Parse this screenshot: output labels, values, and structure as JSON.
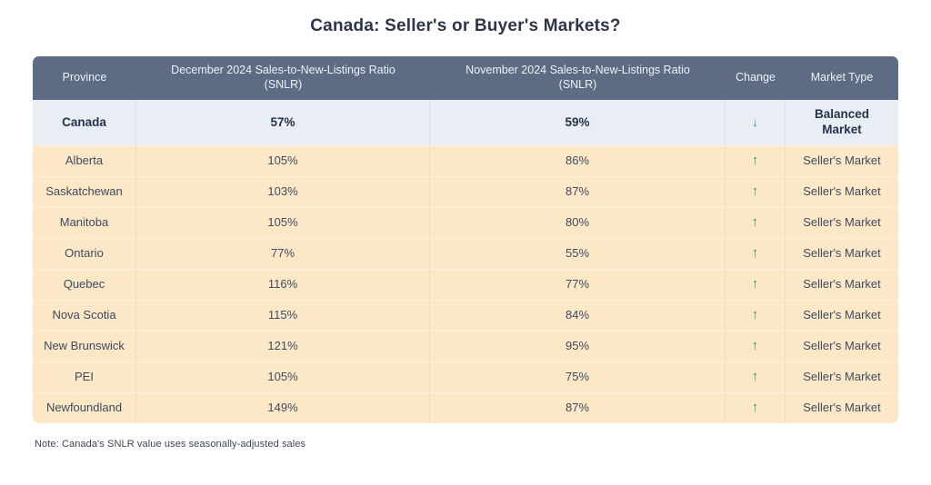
{
  "title": "Canada: Seller's or Buyer's Markets?",
  "note": "Note: Canada's SNLR value uses seasonally-adjusted sales",
  "columns": {
    "province": "Province",
    "dec": "December 2024 Sales-to-New-Listings Ratio (SNLR)",
    "nov": "November 2024 Sales-to-New-Listings Ratio (SNLR)",
    "change": "Change",
    "market": "Market Type"
  },
  "arrow_glyphs": {
    "up": "↑",
    "down": "↓"
  },
  "colors": {
    "header_bg": "#5d6b83",
    "header_text": "#eef1f6",
    "canada_row_bg": "#e9eef4",
    "province_row_bg": "#fce8c7",
    "arrow_green": "#2f9e44",
    "title_text": "#2b3648",
    "body_text": "#3d4b60"
  },
  "chart_data": {
    "type": "table",
    "title": "Canada: Seller's or Buyer's Markets?",
    "columns": [
      "Province",
      "December 2024 Sales-to-New-Listings Ratio (SNLR)",
      "November 2024 Sales-to-New-Listings Ratio (SNLR)",
      "Change",
      "Market Type"
    ],
    "rows": [
      {
        "province": "Canada",
        "dec_2024_snlr": "57%",
        "nov_2024_snlr": "59%",
        "change": "down",
        "market_type": "Balanced Market",
        "emphasis": true
      },
      {
        "province": "Alberta",
        "dec_2024_snlr": "105%",
        "nov_2024_snlr": "86%",
        "change": "up",
        "market_type": "Seller's Market"
      },
      {
        "province": "Saskatchewan",
        "dec_2024_snlr": "103%",
        "nov_2024_snlr": "87%",
        "change": "up",
        "market_type": "Seller's Market"
      },
      {
        "province": "Manitoba",
        "dec_2024_snlr": "105%",
        "nov_2024_snlr": "80%",
        "change": "up",
        "market_type": "Seller's Market"
      },
      {
        "province": "Ontario",
        "dec_2024_snlr": "77%",
        "nov_2024_snlr": "55%",
        "change": "up",
        "market_type": "Seller's Market"
      },
      {
        "province": "Quebec",
        "dec_2024_snlr": "116%",
        "nov_2024_snlr": "77%",
        "change": "up",
        "market_type": "Seller's Market"
      },
      {
        "province": "Nova Scotia",
        "dec_2024_snlr": "115%",
        "nov_2024_snlr": "84%",
        "change": "up",
        "market_type": "Seller's Market"
      },
      {
        "province": "New Brunswick",
        "dec_2024_snlr": "121%",
        "nov_2024_snlr": "95%",
        "change": "up",
        "market_type": "Seller's Market"
      },
      {
        "province": "PEI",
        "dec_2024_snlr": "105%",
        "nov_2024_snlr": "75%",
        "change": "up",
        "market_type": "Seller's Market"
      },
      {
        "province": "Newfoundland",
        "dec_2024_snlr": "149%",
        "nov_2024_snlr": "87%",
        "change": "up",
        "market_type": "Seller's Market"
      }
    ]
  }
}
